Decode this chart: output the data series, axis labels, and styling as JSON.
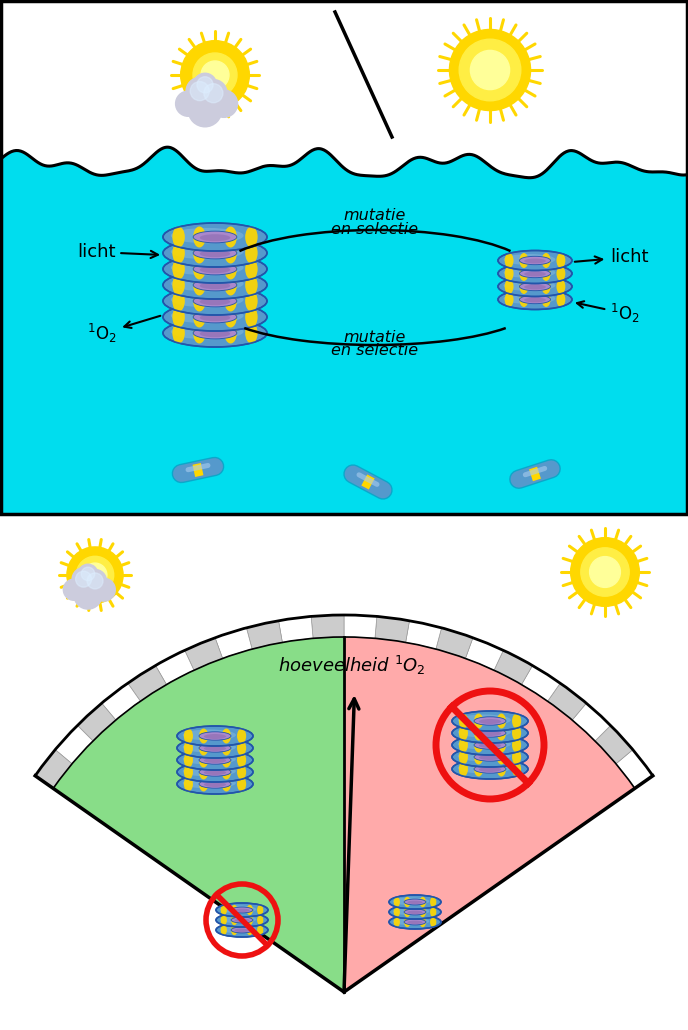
{
  "fig_width": 6.88,
  "fig_height": 10.3,
  "bg_color": "#ffffff",
  "water_color": "#00ddee",
  "sky_color": "#ffffff",
  "sun_ray_color": "#FFD700",
  "sun_core_color": "#FFFF99",
  "cloud_color": "#ccccdd",
  "cloud_blue": "#aabbcc",
  "ring_blue": "#5599cc",
  "ring_blue_dark": "#2255aa",
  "ring_blue_light": "#88bbdd",
  "ring_yellow": "#FFD700",
  "ring_purple": "#aa88cc",
  "ring_inner": "#9977bb",
  "green_fill": "#88dd88",
  "pink_fill": "#ffaaaa",
  "red_color": "#ee1111",
  "text_color": "#000000",
  "licht_label": "licht",
  "o2_label": "$^1$O$_2$",
  "mutatie_top": "mutatie\nen selectie",
  "mutatie_bot": "mutatie\nen selectie",
  "hoeveelheid_label": "hoeveelheid $^1$O$_2$"
}
